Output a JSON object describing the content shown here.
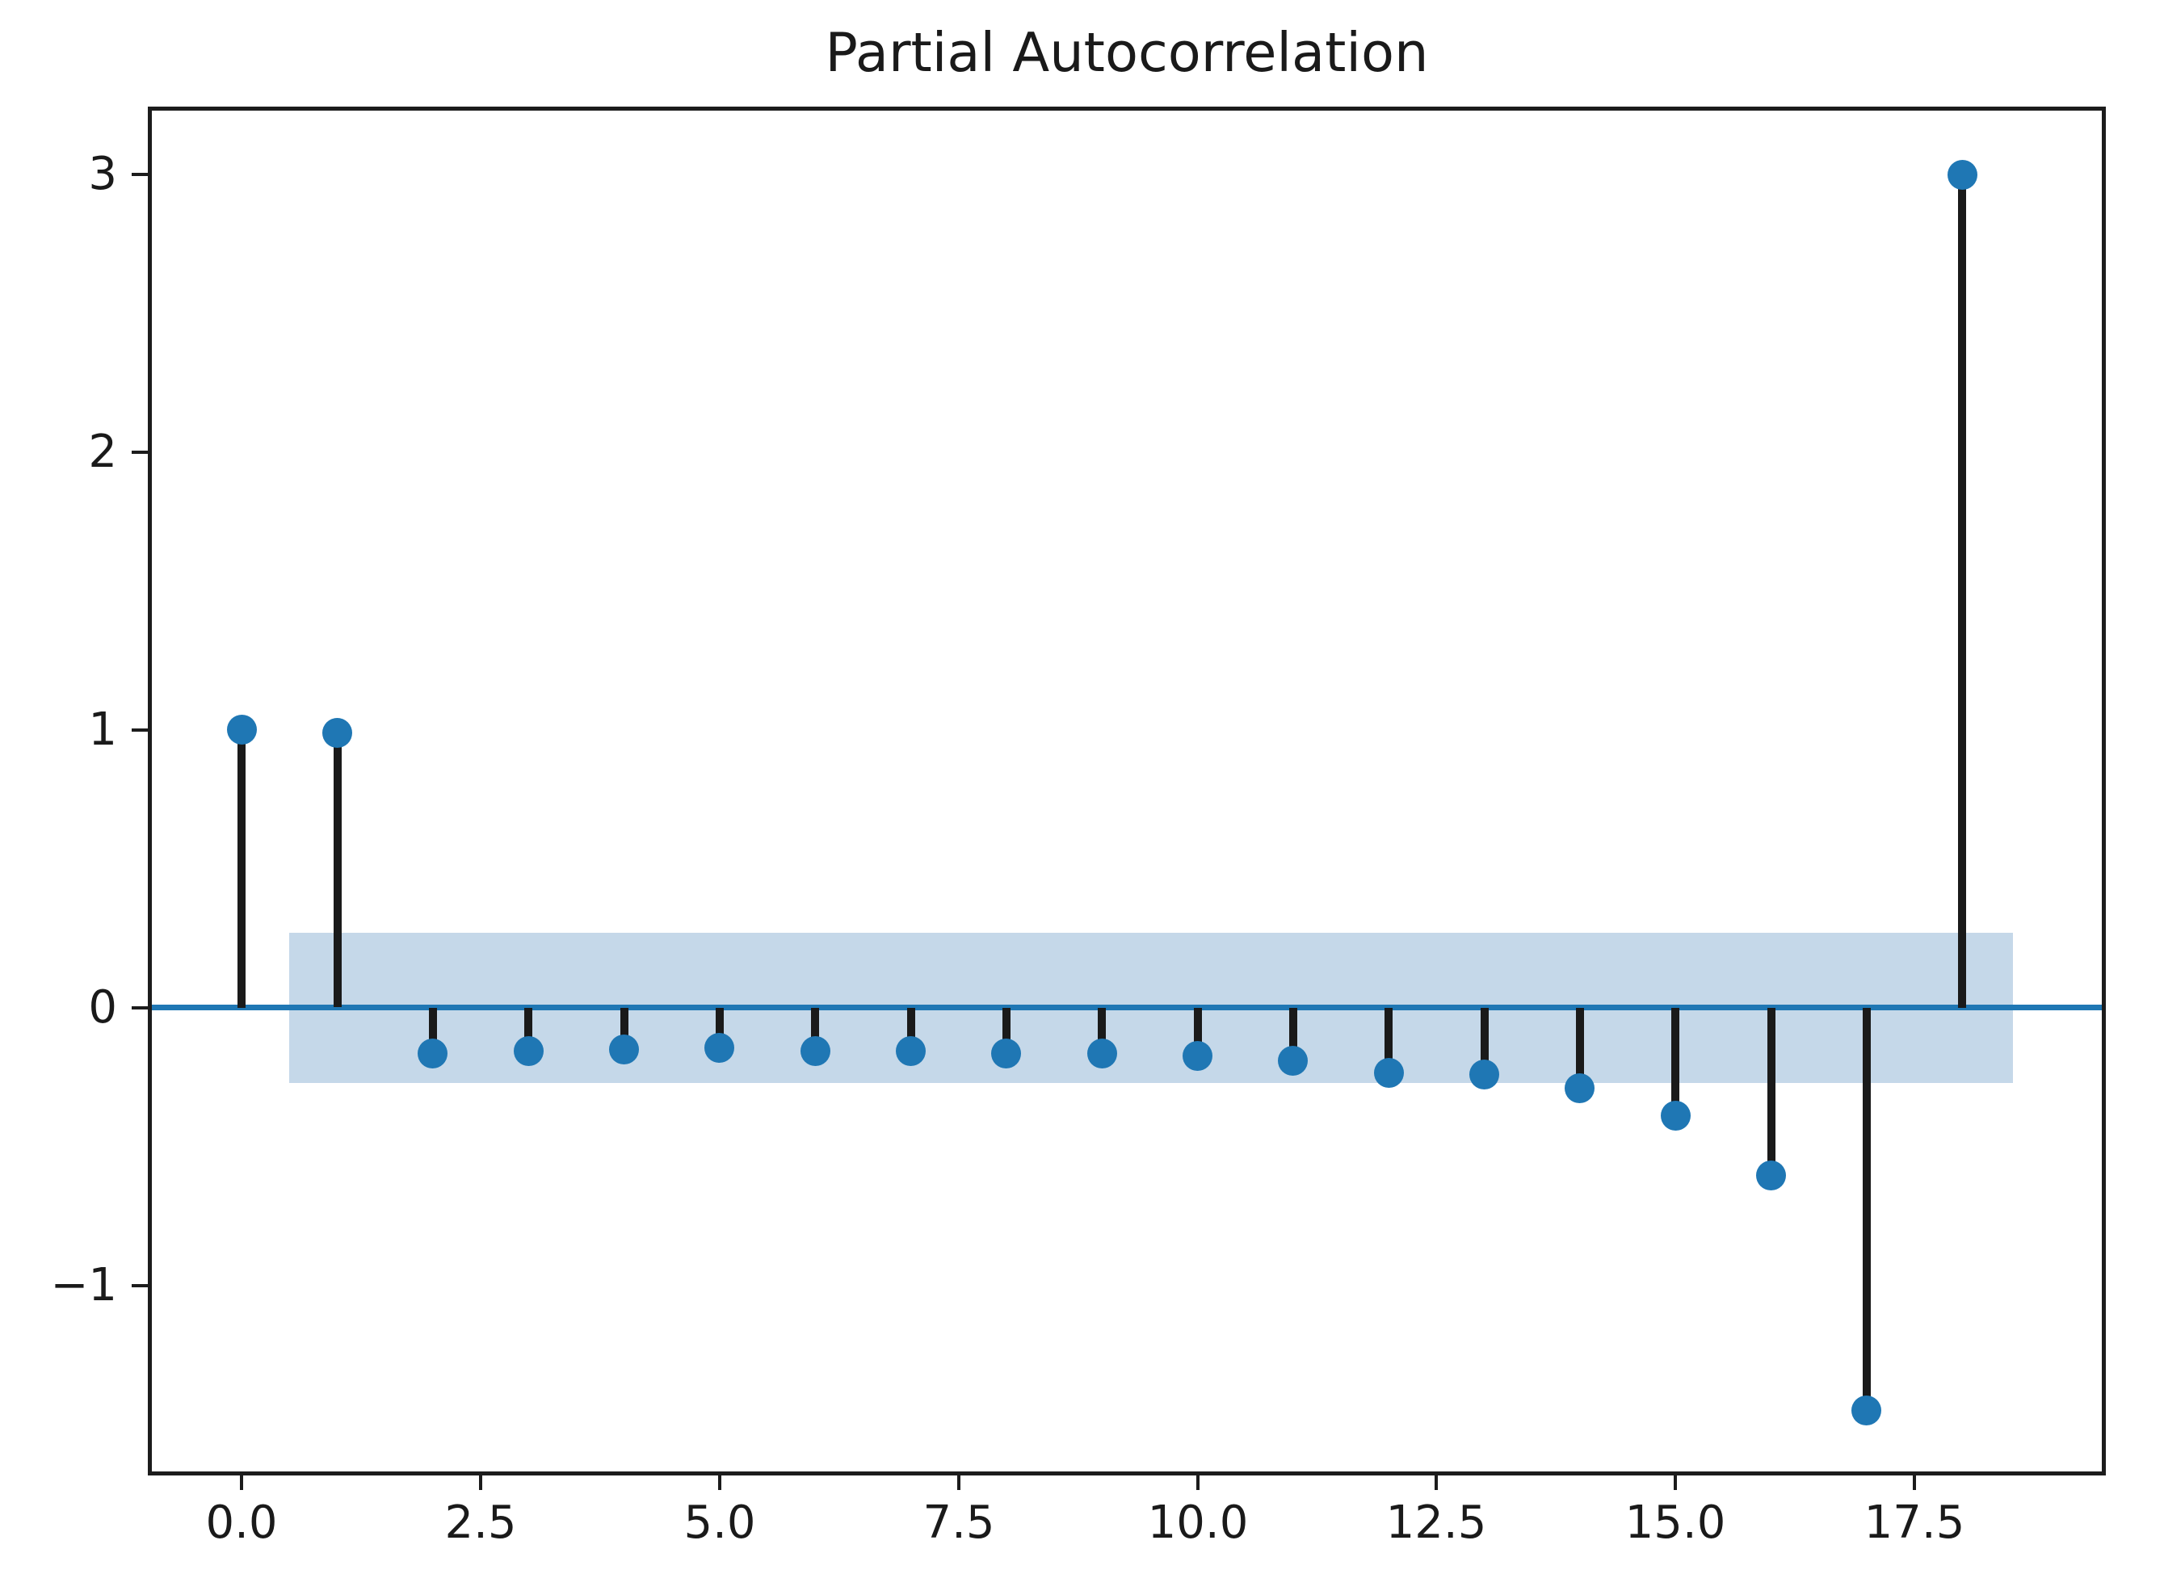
{
  "chart_data": {
    "type": "stem",
    "title": "Partial Autocorrelation",
    "description": "Partial autocorrelation function (PACF) stem plot with shaded confidence band",
    "x": [
      0,
      1,
      2,
      3,
      4,
      5,
      6,
      7,
      8,
      9,
      10,
      11,
      12,
      13,
      14,
      15,
      16,
      17,
      18
    ],
    "values": [
      1.0,
      0.99,
      -0.165,
      -0.155,
      -0.15,
      -0.145,
      -0.155,
      -0.155,
      -0.165,
      -0.165,
      -0.175,
      -0.19,
      -0.235,
      -0.24,
      -0.29,
      -0.39,
      -0.605,
      -1.45,
      3.0
    ],
    "baseline": 0,
    "confidence_band": {
      "low": -0.27,
      "high": 0.27,
      "x_start": 0.5,
      "x_end": 18.53
    },
    "xlim": [
      -0.94,
      19.46
    ],
    "ylim": [
      -1.67,
      3.23
    ],
    "xticks": {
      "values": [
        0,
        2.5,
        5,
        7.5,
        10,
        12.5,
        15,
        17.5
      ],
      "labels": [
        "0.0",
        "2.5",
        "5.0",
        "7.5",
        "10.0",
        "12.5",
        "15.0",
        "17.5"
      ]
    },
    "yticks": {
      "values": [
        3,
        2,
        1,
        0,
        -1
      ],
      "labels": [
        "3",
        "2",
        "1",
        "0",
        "−1"
      ]
    },
    "grid": false,
    "legend": null,
    "colors": {
      "marker": "#1f77b4",
      "stem": "#1a1a1a",
      "zero_line": "#1f77b4",
      "band_fill": "#c5d8e9",
      "spine": "#1c1c1c",
      "text": "#1a1a1a"
    }
  }
}
